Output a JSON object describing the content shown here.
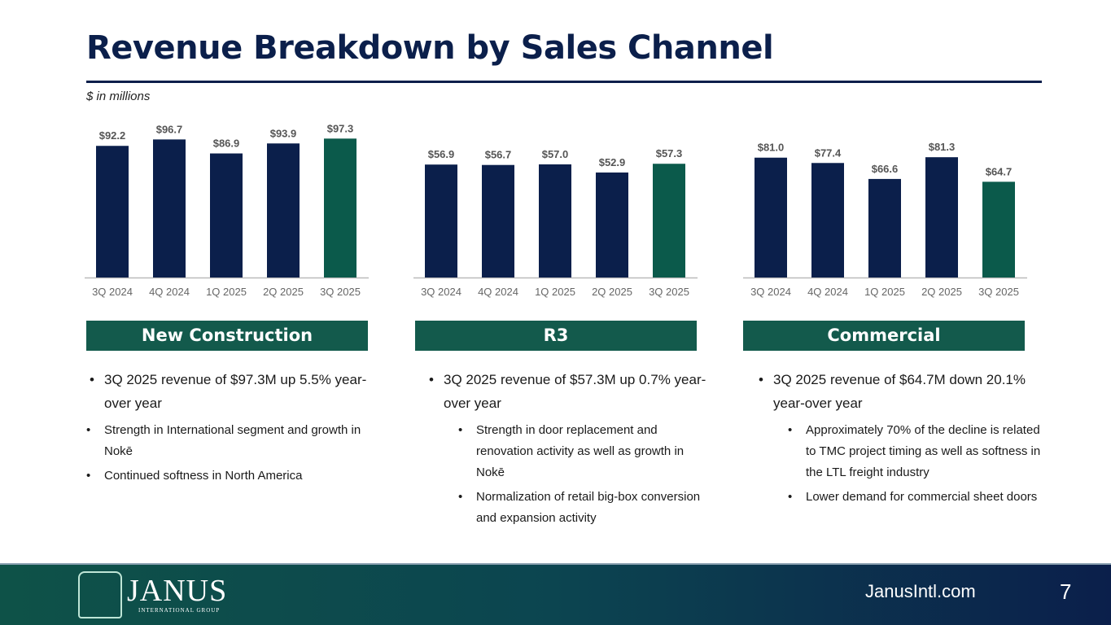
{
  "title": "Revenue Breakdown by Sales Channel",
  "units": "$ in millions",
  "chart_data": [
    {
      "type": "bar",
      "title": "New Construction",
      "categories": [
        "3Q 2024",
        "4Q 2024",
        "1Q 2025",
        "2Q 2025",
        "3Q 2025"
      ],
      "values": [
        92.2,
        96.7,
        86.9,
        93.9,
        97.3
      ],
      "labels": [
        "$92.2",
        "$96.7",
        "$86.9",
        "$93.9",
        "$97.3"
      ],
      "ylim": [
        0,
        114
      ],
      "highlight_last": true
    },
    {
      "type": "bar",
      "title": "R3",
      "categories": [
        "3Q 2024",
        "4Q 2024",
        "1Q 2025",
        "2Q 2025",
        "3Q 2025"
      ],
      "values": [
        56.9,
        56.7,
        57.0,
        52.9,
        57.3
      ],
      "labels": [
        "$56.9",
        "$56.7",
        "$57.0",
        "$52.9",
        "$57.3"
      ],
      "ylim": [
        0,
        82
      ],
      "highlight_last": true
    },
    {
      "type": "bar",
      "title": "Commercial",
      "categories": [
        "3Q 2024",
        "4Q 2024",
        "1Q 2025",
        "2Q 2025",
        "3Q 2025"
      ],
      "values": [
        81.0,
        77.4,
        66.6,
        81.3,
        64.7
      ],
      "labels": [
        "$81.0",
        "$77.4",
        "$66.6",
        "$81.3",
        "$64.7"
      ],
      "ylim": [
        0,
        110
      ],
      "highlight_last": true
    }
  ],
  "colors": {
    "bar": "#0b1f4b",
    "highlight": "#0b5a4b",
    "header": "#135a4c"
  },
  "sections": [
    {
      "header": "New Construction",
      "main": "3Q 2025 revenue of $97.3M up 5.5% year-over year",
      "subs": [
        "Strength in International segment and growth in Nokē",
        "Continued softness in North America"
      ]
    },
    {
      "header": "R3",
      "main": "3Q 2025 revenue of $57.3M up 0.7% year-over year",
      "subs": [
        "Strength in door replacement and renovation activity as well as growth in Nokē",
        "Normalization of retail big-box conversion and expansion activity"
      ]
    },
    {
      "header": "Commercial",
      "main": "3Q 2025 revenue of $64.7M down 20.1% year-over year",
      "subs": [
        "Approximately 70% of the decline is related to TMC project timing as well as softness in the  LTL freight industry",
        "Lower demand for commercial sheet doors"
      ]
    }
  ],
  "footer": {
    "logo": "JANUS",
    "logo_sub": "INTERNATIONAL GROUP",
    "site": "JanusIntl.com",
    "page": "7"
  }
}
